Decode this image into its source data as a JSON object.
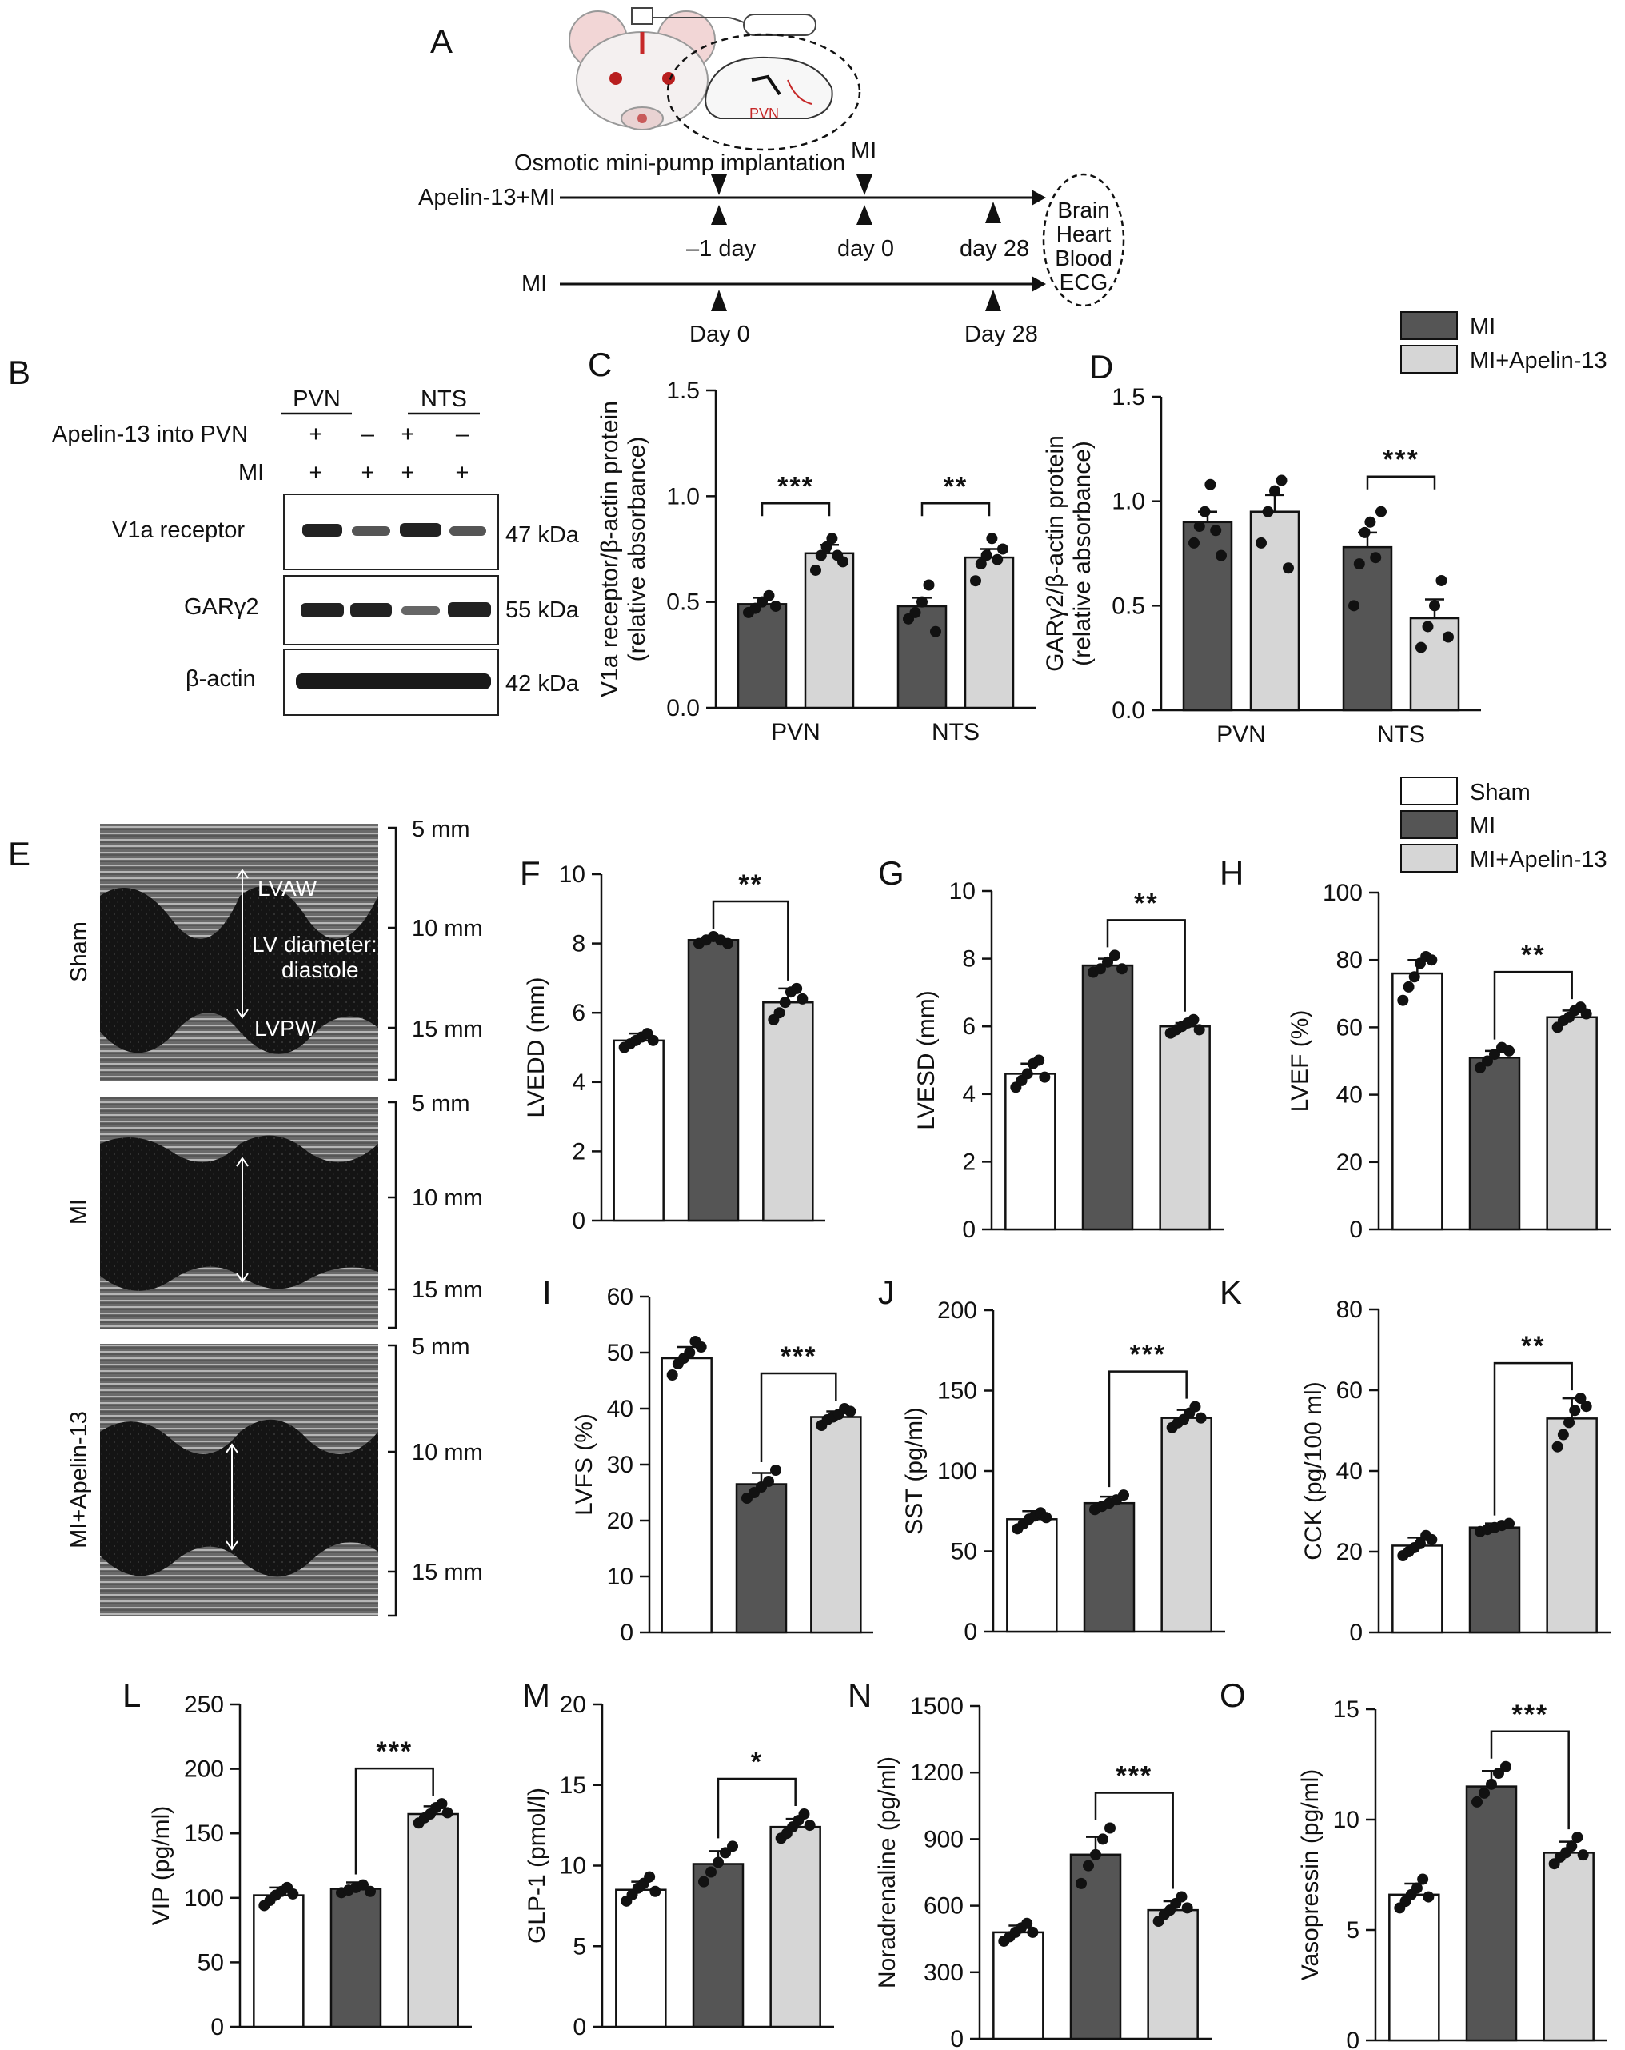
{
  "colors": {
    "sham": "#ffffff",
    "mi": "#555555",
    "apelin": "#d6d6d6",
    "outline": "#111111",
    "dot": "#111111"
  },
  "panel_a": {
    "letter": "A",
    "pump_label": "Osmotic mini-pump implantation",
    "mi_marker": "MI",
    "group1": "Apelin-13+MI",
    "group2": "MI",
    "g1_days": [
      "–1 day",
      "day 0",
      "day 28"
    ],
    "g2_days": [
      "Day 0",
      "Day 28"
    ],
    "endpoints": [
      "Brain",
      "Heart",
      "Blood",
      "ECG"
    ],
    "brain_region": "PVN"
  },
  "panel_b": {
    "letter": "B",
    "col_groups": [
      "PVN",
      "NTS"
    ],
    "row1_label": "Apelin-13 into PVN",
    "row1_signs": [
      "+",
      "–",
      "+",
      "–"
    ],
    "row2_label": "MI",
    "row2_signs": [
      "+",
      "+",
      "+",
      "+"
    ],
    "blots": [
      {
        "name": "V1a receptor",
        "kda": "47 kDa"
      },
      {
        "name": "GARγ2",
        "kda": "55 kDa"
      },
      {
        "name": "β-actin",
        "kda": "42 kDa"
      }
    ]
  },
  "legend_top": {
    "items": [
      "MI",
      "MI+Apelin-13"
    ]
  },
  "legend_mid": {
    "items": [
      "Sham",
      "MI",
      "MI+Apelin-13"
    ]
  },
  "panel_e": {
    "letter": "E",
    "rows": [
      "Sham",
      "MI",
      "MI+Apelin-13"
    ],
    "scale": [
      "5 mm",
      "10 mm",
      "15 mm"
    ],
    "annotations": [
      "LVAW",
      "LV diameter:",
      "diastole",
      "LVPW"
    ]
  },
  "chart_data": [
    {
      "id": "C",
      "type": "bar",
      "ylabel": [
        "V1a receptor/β-actin protein",
        "(relative absorbance)"
      ],
      "categories": [
        "PVN",
        "NTS"
      ],
      "ylim": [
        0,
        1.5
      ],
      "yticks": [
        "0.0",
        "0.5",
        "1.0",
        "1.5"
      ],
      "series": [
        {
          "name": "MI",
          "values": [
            0.49,
            0.48
          ]
        },
        {
          "name": "MI+Apelin-13",
          "values": [
            0.73,
            0.71
          ]
        }
      ],
      "errors": [
        [
          0.03,
          0.04
        ],
        [
          0.04,
          0.04
        ]
      ],
      "points": [
        [
          [
            0.45,
            0.47,
            0.5,
            0.53,
            0.48
          ],
          [
            0.42,
            0.45,
            0.5,
            0.58,
            0.36
          ]
        ],
        [
          [
            0.65,
            0.72,
            0.76,
            0.8,
            0.72,
            0.69
          ],
          [
            0.6,
            0.68,
            0.72,
            0.8,
            0.7,
            0.75
          ]
        ]
      ],
      "sig": [
        {
          "cat": 0,
          "label": "***"
        },
        {
          "cat": 1,
          "label": "**"
        }
      ]
    },
    {
      "id": "D",
      "type": "bar",
      "ylabel": [
        "GARγ2/β-actin protein",
        "(relative absorbance)"
      ],
      "categories": [
        "PVN",
        "NTS"
      ],
      "ylim": [
        0,
        1.5
      ],
      "yticks": [
        "0.0",
        "0.5",
        "1.0",
        "1.5"
      ],
      "series": [
        {
          "name": "MI",
          "values": [
            0.9,
            0.78
          ]
        },
        {
          "name": "MI+Apelin-13",
          "values": [
            0.95,
            0.44
          ]
        }
      ],
      "errors": [
        [
          0.05,
          0.07
        ],
        [
          0.08,
          0.09
        ]
      ],
      "points": [
        [
          [
            0.8,
            0.88,
            0.95,
            1.08,
            0.86,
            0.74
          ],
          [
            0.5,
            0.7,
            0.85,
            0.9,
            0.73,
            0.95
          ]
        ],
        [
          [
            0.8,
            0.95,
            1.05,
            1.1,
            0.68
          ],
          [
            0.3,
            0.4,
            0.5,
            0.62,
            0.35
          ]
        ]
      ],
      "sig": [
        {
          "cat": 1,
          "label": "***"
        }
      ]
    },
    {
      "id": "F",
      "type": "bar",
      "ylabel": [
        "LVEDD (mm)"
      ],
      "categories": [
        "Sham",
        "MI",
        "MI+Apelin-13"
      ],
      "ylim": [
        0,
        10
      ],
      "yticks": [
        "0",
        "2",
        "4",
        "6",
        "8",
        "10"
      ],
      "values": [
        5.2,
        8.1,
        6.3
      ],
      "errors": [
        0.2,
        0.1,
        0.4
      ],
      "points": [
        [
          5.0,
          5.1,
          5.2,
          5.3,
          5.4,
          5.2
        ],
        [
          8.0,
          8.1,
          8.2,
          8.1,
          8.0
        ],
        [
          5.8,
          6.0,
          6.3,
          6.6,
          6.7,
          6.4
        ]
      ],
      "sig": {
        "from": 1,
        "to": 2,
        "label": "**"
      }
    },
    {
      "id": "G",
      "type": "bar",
      "ylabel": [
        "LVESD (mm)"
      ],
      "categories": [
        "Sham",
        "MI",
        "MI+Apelin-13"
      ],
      "ylim": [
        0,
        10
      ],
      "yticks": [
        "0",
        "2",
        "4",
        "6",
        "8",
        "10"
      ],
      "values": [
        4.6,
        7.8,
        6.0
      ],
      "errors": [
        0.3,
        0.2,
        0.1
      ],
      "points": [
        [
          4.2,
          4.4,
          4.6,
          4.9,
          5.0,
          4.5
        ],
        [
          7.6,
          7.7,
          7.9,
          8.1,
          7.7
        ],
        [
          5.8,
          5.9,
          6.0,
          6.1,
          6.2,
          5.9
        ]
      ],
      "sig": {
        "from": 1,
        "to": 2,
        "label": "**"
      }
    },
    {
      "id": "H",
      "type": "bar",
      "ylabel": [
        "LVEF (%)"
      ],
      "categories": [
        "Sham",
        "MI",
        "MI+Apelin-13"
      ],
      "ylim": [
        0,
        100
      ],
      "yticks": [
        "0",
        "20",
        "40",
        "60",
        "80",
        "100"
      ],
      "values": [
        76,
        51,
        63
      ],
      "errors": [
        4,
        2,
        2
      ],
      "points": [
        [
          68,
          72,
          75,
          79,
          81,
          80
        ],
        [
          48,
          50,
          52,
          54,
          53
        ],
        [
          60,
          62,
          63,
          65,
          66,
          64
        ]
      ],
      "sig": {
        "from": 1,
        "to": 2,
        "label": "**"
      }
    },
    {
      "id": "I",
      "type": "bar",
      "ylabel": [
        "LVFS (%)"
      ],
      "categories": [
        "Sham",
        "MI",
        "MI+Apelin-13"
      ],
      "ylim": [
        0,
        60
      ],
      "yticks": [
        "0",
        "10",
        "20",
        "30",
        "40",
        "50",
        "60"
      ],
      "values": [
        49,
        26.5,
        38.5
      ],
      "errors": [
        2,
        2,
        1
      ],
      "points": [
        [
          46,
          48,
          49,
          50,
          52,
          51
        ],
        [
          24,
          25,
          26,
          27,
          29
        ],
        [
          37,
          38,
          38.5,
          39,
          40,
          39.5
        ]
      ],
      "sig": {
        "from": 1,
        "to": 2,
        "label": "***"
      }
    },
    {
      "id": "J",
      "type": "bar",
      "ylabel": [
        "SST (pg/ml)"
      ],
      "categories": [
        "Sham",
        "MI",
        "MI+Apelin-13"
      ],
      "ylim": [
        0,
        200
      ],
      "yticks": [
        "0",
        "50",
        "100",
        "150",
        "200"
      ],
      "values": [
        70,
        80,
        133
      ],
      "errors": [
        5,
        4,
        5
      ],
      "points": [
        [
          64,
          67,
          70,
          72,
          74,
          71
        ],
        [
          76,
          78,
          80,
          82,
          85
        ],
        [
          127,
          130,
          132,
          136,
          140,
          133
        ]
      ],
      "sig": {
        "from": 1,
        "to": 2,
        "label": "***"
      }
    },
    {
      "id": "K",
      "type": "bar",
      "ylabel": [
        "CCK (pg/100 ml)"
      ],
      "categories": [
        "Sham",
        "MI",
        "MI+Apelin-13"
      ],
      "ylim": [
        0,
        80
      ],
      "yticks": [
        "0",
        "20",
        "40",
        "60",
        "80"
      ],
      "values": [
        21.5,
        26,
        53
      ],
      "errors": [
        2,
        1,
        5
      ],
      "points": [
        [
          19,
          20,
          21,
          22,
          24,
          23
        ],
        [
          25,
          25.5,
          26,
          26.5,
          27
        ],
        [
          46,
          49,
          52,
          55,
          58,
          56
        ]
      ],
      "sig": {
        "from": 1,
        "to": 2,
        "label": "**"
      }
    },
    {
      "id": "L",
      "type": "bar",
      "ylabel": [
        "VIP (pg/ml)"
      ],
      "categories": [
        "Sham",
        "MI",
        "MI+Apelin-13"
      ],
      "ylim": [
        0,
        250
      ],
      "yticks": [
        "0",
        "50",
        "100",
        "150",
        "200",
        "250"
      ],
      "values": [
        102,
        107,
        165
      ],
      "errors": [
        6,
        5,
        6
      ],
      "points": [
        [
          94,
          98,
          102,
          105,
          108,
          103
        ],
        [
          104,
          106,
          108,
          110,
          105
        ],
        [
          158,
          162,
          165,
          170,
          173,
          166
        ]
      ],
      "sig": {
        "from": 1,
        "to": 2,
        "label": "***"
      }
    },
    {
      "id": "M",
      "type": "bar",
      "ylabel": [
        "GLP-1 (pmol/l)"
      ],
      "categories": [
        "Sham",
        "MI",
        "MI+Apelin-13"
      ],
      "ylim": [
        0,
        20
      ],
      "yticks": [
        "0",
        "5",
        "10",
        "15",
        "20"
      ],
      "values": [
        8.5,
        10.1,
        12.4
      ],
      "errors": [
        0.5,
        0.8,
        0.5
      ],
      "points": [
        [
          7.8,
          8.2,
          8.6,
          8.9,
          9.3,
          8.4
        ],
        [
          9.0,
          9.6,
          10.2,
          10.8,
          11.2
        ],
        [
          11.7,
          12.0,
          12.4,
          12.8,
          13.2,
          12.5
        ]
      ],
      "sig": {
        "from": 1,
        "to": 2,
        "label": "*"
      }
    },
    {
      "id": "N",
      "type": "bar",
      "ylabel": [
        "Noradrenaline (pg/ml)"
      ],
      "categories": [
        "Sham",
        "MI",
        "MI+Apelin-13"
      ],
      "ylim": [
        0,
        1500
      ],
      "yticks": [
        "0",
        "300",
        "600",
        "900",
        "1200",
        "1500"
      ],
      "values": [
        480,
        830,
        580
      ],
      "errors": [
        30,
        80,
        40
      ],
      "points": [
        [
          440,
          460,
          480,
          500,
          520,
          480
        ],
        [
          700,
          780,
          830,
          900,
          950
        ],
        [
          530,
          560,
          580,
          610,
          640,
          590
        ]
      ],
      "sig": {
        "from": 1,
        "to": 2,
        "label": "***"
      }
    },
    {
      "id": "O",
      "type": "bar",
      "ylabel": [
        "Vasopressin (pg/ml)"
      ],
      "categories": [
        "Sham",
        "MI",
        "MI+Apelin-13"
      ],
      "ylim": [
        0,
        15
      ],
      "yticks": [
        "0",
        "5",
        "10",
        "15"
      ],
      "values": [
        6.6,
        11.5,
        8.5
      ],
      "errors": [
        0.5,
        0.7,
        0.5
      ],
      "points": [
        [
          6.0,
          6.3,
          6.6,
          6.9,
          7.3,
          6.5
        ],
        [
          10.8,
          11.2,
          11.6,
          12.1,
          12.4
        ],
        [
          8.0,
          8.3,
          8.5,
          8.8,
          9.2,
          8.4
        ]
      ],
      "sig": {
        "from": 1,
        "to": 2,
        "label": "***"
      }
    }
  ]
}
